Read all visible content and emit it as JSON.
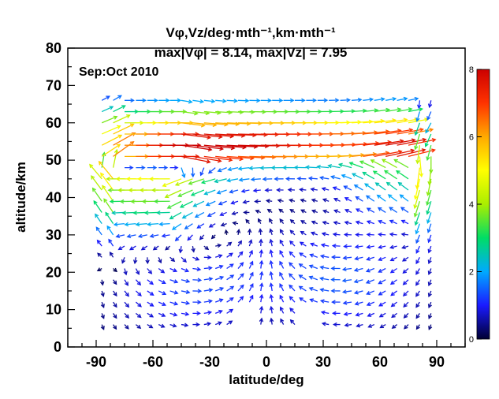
{
  "chart_data": {
    "type": "vector-field",
    "title_line1": "Vφ,Vz/deg·mth⁻¹,km·mth⁻¹",
    "title_line2": "max|Vφ| = 8.14, max|Vz| = 7.95",
    "annotation": "Sep:Oct 2010",
    "xlabel": "latitude/deg",
    "ylabel": "altitude/km",
    "xlim": [
      -105,
      105
    ],
    "ylim": [
      0,
      80
    ],
    "xticks": [
      -90,
      -60,
      -30,
      0,
      30,
      60,
      90
    ],
    "yticks": [
      0,
      10,
      20,
      30,
      40,
      50,
      60,
      70,
      80
    ],
    "max_vphi": 8.14,
    "max_vz": 7.95,
    "colorbar": {
      "range": [
        0,
        8
      ],
      "ticks": [
        0,
        2,
        4,
        6,
        8
      ],
      "colors": [
        "#000033",
        "#1a1aff",
        "#00aaff",
        "#00dd66",
        "#aaee00",
        "#ffff00",
        "#ffaa00",
        "#ff3300",
        "#cc0000"
      ]
    },
    "grid": false,
    "legend": "colorbar-right"
  }
}
